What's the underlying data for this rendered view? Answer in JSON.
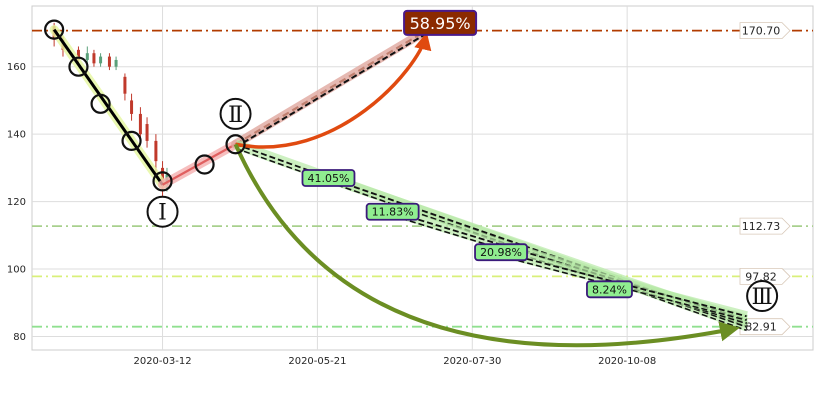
{
  "chart_data": {
    "type": "line",
    "x_ticks": [
      "2020-03-12",
      "2020-05-21",
      "2020-07-30",
      "2020-10-08"
    ],
    "y_ticks": [
      80,
      100,
      120,
      140,
      160
    ],
    "xlim": [
      "2020-01-13",
      "2020-12-31"
    ],
    "ylim": [
      76,
      178
    ],
    "grid": true,
    "horizontal_levels": [
      {
        "value": 170.7,
        "label": "170.70",
        "color": "#b23c00",
        "style": "dashdot"
      },
      {
        "value": 112.73,
        "label": "112.73",
        "color": "#a8d08d",
        "style": "dashdot"
      },
      {
        "value": 97.82,
        "label": "97.82",
        "color": "#d9f07a",
        "style": "dashdot"
      },
      {
        "value": 82.91,
        "label": "82.91",
        "color": "#90e090",
        "style": "dashdot"
      }
    ],
    "candles": [
      {
        "date": "2020-01-23",
        "open": 172,
        "close": 168,
        "high": 173,
        "low": 166
      },
      {
        "date": "2020-01-27",
        "open": 168,
        "close": 165,
        "high": 169,
        "low": 163
      },
      {
        "date": "2020-02-03",
        "open": 165,
        "close": 162,
        "high": 166,
        "low": 160
      },
      {
        "date": "2020-02-07",
        "open": 162,
        "close": 164,
        "high": 166,
        "low": 161
      },
      {
        "date": "2020-02-10",
        "open": 164,
        "close": 161,
        "high": 165,
        "low": 160
      },
      {
        "date": "2020-02-13",
        "open": 161,
        "close": 163,
        "high": 164,
        "low": 160
      },
      {
        "date": "2020-02-17",
        "open": 163,
        "close": 160,
        "high": 164,
        "low": 159
      },
      {
        "date": "2020-02-20",
        "open": 160,
        "close": 162,
        "high": 163,
        "low": 159
      },
      {
        "date": "2020-02-24",
        "open": 157,
        "close": 152,
        "high": 158,
        "low": 150
      },
      {
        "date": "2020-02-27",
        "open": 150,
        "close": 146,
        "high": 152,
        "low": 144
      },
      {
        "date": "2020-03-02",
        "open": 146,
        "close": 140,
        "high": 148,
        "low": 138
      },
      {
        "date": "2020-03-05",
        "open": 143,
        "close": 138,
        "high": 145,
        "low": 136
      },
      {
        "date": "2020-03-09",
        "open": 138,
        "close": 132,
        "high": 140,
        "low": 128
      },
      {
        "date": "2020-03-12",
        "open": 130,
        "close": 125,
        "high": 132,
        "low": 121
      },
      {
        "date": "2020-03-14",
        "open": 125,
        "close": 128,
        "high": 130,
        "low": 123
      }
    ],
    "waves": [
      {
        "from": [
          "2020-01-23",
          171
        ],
        "to": [
          "2020-03-12",
          125
        ],
        "color": "#000000"
      },
      {
        "from": [
          "2020-03-12",
          125
        ],
        "to": [
          "2020-04-14",
          137
        ],
        "color": "#e06060"
      },
      {
        "from": [
          "2020-04-14",
          137
        ],
        "to": [
          "2020-07-10",
          171
        ],
        "color": "#c08070"
      }
    ],
    "markers": [
      {
        "x": "2020-01-23",
        "y": 171
      },
      {
        "x": "2020-02-03",
        "y": 160
      },
      {
        "x": "2020-02-13",
        "y": 149
      },
      {
        "x": "2020-02-27",
        "y": 138
      },
      {
        "x": "2020-03-12",
        "y": 126
      },
      {
        "x": "2020-03-31",
        "y": 131
      },
      {
        "x": "2020-04-14",
        "y": 137
      }
    ],
    "wave_labels": [
      {
        "text": "Ⅰ",
        "x": "2020-03-12",
        "y": 117
      },
      {
        "text": "Ⅱ",
        "x": "2020-04-14",
        "y": 146
      },
      {
        "text": "Ⅲ",
        "x": "2020-12-08",
        "y": 92
      }
    ],
    "projections": [
      {
        "from": [
          "2020-04-14",
          137
        ],
        "to": [
          "2020-07-10",
          171
        ],
        "label": "58.95%",
        "label_at": [
          "2020-07-15",
          173
        ],
        "style": "big"
      },
      {
        "from": [
          "2020-04-14",
          137
        ],
        "to": [
          "2020-12-01",
          83
        ],
        "label": "41.05%",
        "label_at": [
          "2020-05-26",
          127
        ],
        "style": "small"
      },
      {
        "from": [
          "2020-05-26",
          127
        ],
        "to": [
          "2020-12-01",
          84
        ],
        "label": "11.83%",
        "label_at": [
          "2020-06-24",
          117
        ],
        "style": "small"
      },
      {
        "from": [
          "2020-06-24",
          117
        ],
        "to": [
          "2020-12-01",
          85
        ],
        "label": "20.98%",
        "label_at": [
          "2020-08-12",
          105
        ],
        "style": "small"
      },
      {
        "from": [
          "2020-08-12",
          105
        ],
        "to": [
          "2020-12-01",
          86
        ],
        "label": "8.24%",
        "label_at": [
          "2020-09-30",
          94
        ],
        "style": "small"
      }
    ],
    "curved_arrows": [
      {
        "from": [
          "2020-04-14",
          137
        ],
        "to": [
          "2020-07-10",
          171
        ],
        "color": "#e04a10",
        "bend": 60
      },
      {
        "from": [
          "2020-04-14",
          137
        ],
        "to": [
          "2020-11-28",
          83
        ],
        "color": "#6b8e23",
        "bend": 120
      }
    ]
  }
}
